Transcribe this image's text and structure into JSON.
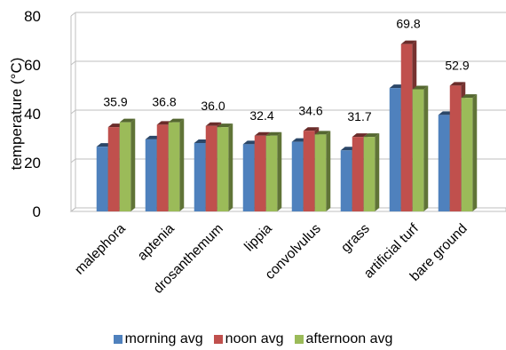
{
  "chart_data": {
    "type": "bar",
    "title": "",
    "xlabel": "",
    "ylabel": "temperature (°C)",
    "ylim": [
      0,
      80
    ],
    "yticks": [
      0,
      20,
      40,
      60,
      80
    ],
    "grid": true,
    "legend_position": "bottom",
    "categories": [
      "malephora",
      "aptenia",
      "drosanthemum",
      "lippia",
      "convolvulus",
      "grass",
      "artificial turf",
      "bare ground"
    ],
    "series": [
      {
        "name": "morning avg",
        "color": "#4f81bd",
        "values": [
          26.5,
          29.5,
          28.0,
          27.5,
          28.5,
          25.0,
          50.5,
          39.5
        ]
      },
      {
        "name": "noon avg",
        "color": "#c0504d",
        "values": [
          34.5,
          35.5,
          35.0,
          31.0,
          33.0,
          30.5,
          68.5,
          51.5
        ]
      },
      {
        "name": "afternoon avg",
        "color": "#9bbb59",
        "values": [
          36.5,
          36.5,
          34.5,
          31.0,
          31.5,
          30.5,
          50.0,
          46.5
        ]
      }
    ],
    "data_labels": [
      "35.9",
      "36.8",
      "36.0",
      "32.4",
      "34.6",
      "31.7",
      "69.8",
      "52.9"
    ]
  }
}
